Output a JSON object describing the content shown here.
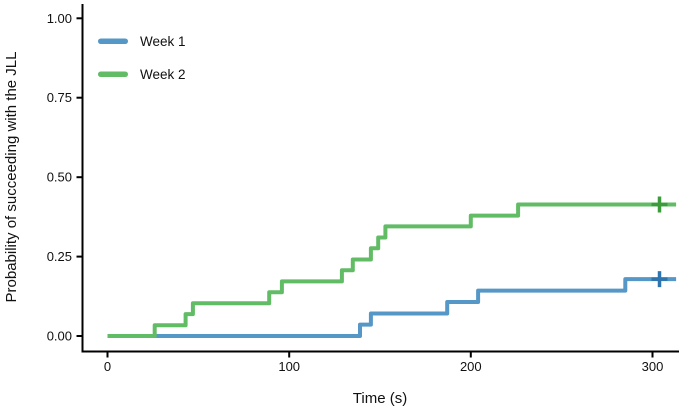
{
  "figure": {
    "x_axis": {
      "label": "Time (s)",
      "tick_labels": [
        "0",
        "100",
        "200",
        "300"
      ]
    },
    "y_axis": {
      "label": "Probability of succeeding with the JLL",
      "tick_labels": [
        "1.00",
        "0.75",
        "0.50",
        "0.25",
        "0.00"
      ]
    },
    "legend": {
      "week1_label": "Week 1",
      "week2_label": "Week 2"
    },
    "colors": {
      "week1_line": "#5598C7",
      "week1_censor": "#2E74AE",
      "week2_line": "#62BC66",
      "week2_censor": "#3C9C3C",
      "axis": "#000000",
      "text": "#111111",
      "background": "#ffffff"
    }
  },
  "chart_data": {
    "type": "line",
    "subtype": "kaplan-meier-cumulative-incidence-step",
    "title": "",
    "xlabel": "Time (s)",
    "ylabel": "Probability of succeeding with the JLL",
    "xlim": [
      0,
      313
    ],
    "ylim": [
      0,
      1
    ],
    "x_ticks": [
      0,
      100,
      200,
      300
    ],
    "y_ticks": [
      0.0,
      0.25,
      0.5,
      0.75,
      1.0
    ],
    "grid": false,
    "legend_position": "top-left-inside",
    "censor_marker": "plus",
    "series": [
      {
        "name": "Week 1",
        "color": "#5598C7",
        "censor_color": "#2E74AE",
        "step": "after",
        "points": [
          [
            0,
            0.0
          ],
          [
            139,
            0.036
          ],
          [
            145,
            0.071
          ],
          [
            187,
            0.107
          ],
          [
            204,
            0.143
          ],
          [
            285,
            0.179
          ]
        ],
        "end_x": 313,
        "censored": [
          [
            300,
            0.179
          ]
        ]
      },
      {
        "name": "Week 2",
        "color": "#62BC66",
        "censor_color": "#3C9C3C",
        "step": "after",
        "points": [
          [
            0,
            0.0
          ],
          [
            26,
            0.034
          ],
          [
            43,
            0.069
          ],
          [
            47,
            0.103
          ],
          [
            89,
            0.138
          ],
          [
            96,
            0.172
          ],
          [
            129,
            0.207
          ],
          [
            135,
            0.241
          ],
          [
            145,
            0.276
          ],
          [
            149,
            0.31
          ],
          [
            153,
            0.345
          ],
          [
            200,
            0.379
          ],
          [
            226,
            0.414
          ]
        ],
        "end_x": 313,
        "censored": [
          [
            300,
            0.414
          ]
        ]
      }
    ]
  }
}
